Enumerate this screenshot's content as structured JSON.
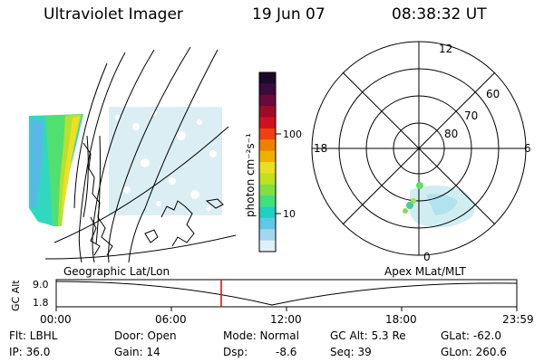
{
  "header": {
    "title": "Ultraviolet Imager",
    "date": "19 Jun 07",
    "time": "08:38:32 UT"
  },
  "colorbar": {
    "unit_label": "photon cm⁻²s⁻¹",
    "ticks": [
      "100",
      "10"
    ],
    "colors": [
      "#1a0a2a",
      "#3d0a3d",
      "#6a0a3a",
      "#a00a2a",
      "#d01020",
      "#f04010",
      "#f08000",
      "#f0b000",
      "#e8e020",
      "#c0e020",
      "#80e040",
      "#40e080",
      "#20d0c0",
      "#60c8e8",
      "#a0d8f0",
      "#e0f0f8"
    ]
  },
  "polar": {
    "labels": {
      "top": "12",
      "bottom": "0",
      "left": "18",
      "right": "6"
    },
    "lat_labels": [
      "60",
      "70",
      "80"
    ]
  },
  "map": {
    "left_caption": "Geographic Lat/Lon",
    "right_caption": "Apex MLat/MLT"
  },
  "altplot": {
    "ylabel": "GC Alt",
    "yticks": [
      "9.0",
      "1.8"
    ],
    "xticks": [
      "00:00",
      "06:00",
      "12:00",
      "18:00",
      "23:59"
    ]
  },
  "info": {
    "flt": "Flt: LBHL",
    "ip": "IP: 36.0",
    "door": "Door: Open",
    "gain": "Gain: 14",
    "mode": "Mode: Normal",
    "dsp_label": "Dsp:",
    "dsp_value": "-8.6",
    "gcalt": "GC Alt: 5.3 Re",
    "seq": "Seq: 39",
    "glat": "GLat: -62.0",
    "glon": "GLon: 260.6"
  }
}
